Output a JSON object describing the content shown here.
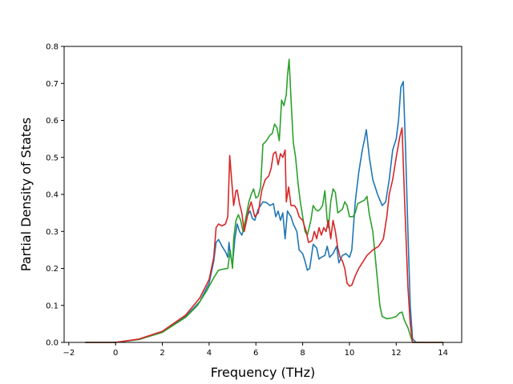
{
  "chart_data": {
    "type": "line",
    "title": "",
    "xlabel": "Frequency (THz)",
    "ylabel": "Partial Density of States",
    "xlim": [
      -2.2,
      14.8
    ],
    "ylim": [
      0,
      0.8
    ],
    "xticks": [
      -2,
      0,
      2,
      4,
      6,
      8,
      10,
      12,
      14
    ],
    "yticks": [
      0.0,
      0.1,
      0.2,
      0.3,
      0.4,
      0.5,
      0.6,
      0.7,
      0.8
    ],
    "xtick_labels": [
      "−2",
      "0",
      "2",
      "4",
      "6",
      "8",
      "10",
      "12",
      "14"
    ],
    "ytick_labels": [
      "0.0",
      "0.1",
      "0.2",
      "0.3",
      "0.4",
      "0.5",
      "0.6",
      "0.7",
      "0.8"
    ],
    "grid": false,
    "legend": "none",
    "series": [
      {
        "color": "#1f77b4",
        "points": [
          [
            -1.3,
            0
          ],
          [
            0,
            0
          ],
          [
            1,
            0.008
          ],
          [
            2,
            0.028
          ],
          [
            3,
            0.07
          ],
          [
            3.6,
            0.11
          ],
          [
            4.0,
            0.16
          ],
          [
            4.2,
            0.22
          ],
          [
            4.3,
            0.27
          ],
          [
            4.4,
            0.278
          ],
          [
            4.55,
            0.26
          ],
          [
            4.7,
            0.245
          ],
          [
            4.8,
            0.23
          ],
          [
            4.85,
            0.27
          ],
          [
            4.9,
            0.24
          ],
          [
            5.0,
            0.21
          ],
          [
            5.1,
            0.28
          ],
          [
            5.2,
            0.32
          ],
          [
            5.3,
            0.3
          ],
          [
            5.4,
            0.29
          ],
          [
            5.5,
            0.31
          ],
          [
            5.6,
            0.34
          ],
          [
            5.75,
            0.355
          ],
          [
            5.85,
            0.335
          ],
          [
            5.95,
            0.33
          ],
          [
            6.1,
            0.36
          ],
          [
            6.3,
            0.38
          ],
          [
            6.45,
            0.378
          ],
          [
            6.6,
            0.37
          ],
          [
            6.75,
            0.375
          ],
          [
            6.85,
            0.34
          ],
          [
            6.95,
            0.355
          ],
          [
            7.05,
            0.33
          ],
          [
            7.15,
            0.35
          ],
          [
            7.25,
            0.28
          ],
          [
            7.35,
            0.355
          ],
          [
            7.5,
            0.34
          ],
          [
            7.6,
            0.32
          ],
          [
            7.75,
            0.3
          ],
          [
            7.85,
            0.25
          ],
          [
            8.0,
            0.24
          ],
          [
            8.1,
            0.22
          ],
          [
            8.2,
            0.195
          ],
          [
            8.3,
            0.2
          ],
          [
            8.45,
            0.265
          ],
          [
            8.6,
            0.255
          ],
          [
            8.7,
            0.225
          ],
          [
            8.8,
            0.23
          ],
          [
            8.95,
            0.235
          ],
          [
            9.05,
            0.26
          ],
          [
            9.15,
            0.23
          ],
          [
            9.3,
            0.24
          ],
          [
            9.45,
            0.26
          ],
          [
            9.55,
            0.215
          ],
          [
            9.7,
            0.235
          ],
          [
            9.85,
            0.24
          ],
          [
            10.0,
            0.23
          ],
          [
            10.1,
            0.25
          ],
          [
            10.25,
            0.38
          ],
          [
            10.4,
            0.46
          ],
          [
            10.55,
            0.52
          ],
          [
            10.65,
            0.55
          ],
          [
            10.72,
            0.575
          ],
          [
            10.85,
            0.5
          ],
          [
            11.0,
            0.44
          ],
          [
            11.2,
            0.4
          ],
          [
            11.4,
            0.37
          ],
          [
            11.55,
            0.38
          ],
          [
            11.7,
            0.44
          ],
          [
            11.85,
            0.52
          ],
          [
            12.0,
            0.55
          ],
          [
            12.1,
            0.6
          ],
          [
            12.2,
            0.69
          ],
          [
            12.3,
            0.705
          ],
          [
            12.4,
            0.52
          ],
          [
            12.5,
            0.3
          ],
          [
            12.6,
            0.1
          ],
          [
            12.7,
            0.01
          ],
          [
            12.85,
            0
          ],
          [
            14.0,
            0
          ]
        ]
      },
      {
        "color": "#2ca02c",
        "points": [
          [
            -1.3,
            0
          ],
          [
            0,
            0
          ],
          [
            1,
            0.008
          ],
          [
            2,
            0.027
          ],
          [
            3,
            0.068
          ],
          [
            3.5,
            0.1
          ],
          [
            3.9,
            0.14
          ],
          [
            4.2,
            0.175
          ],
          [
            4.4,
            0.195
          ],
          [
            4.6,
            0.198
          ],
          [
            4.8,
            0.2
          ],
          [
            4.9,
            0.25
          ],
          [
            5.0,
            0.2
          ],
          [
            5.05,
            0.28
          ],
          [
            5.15,
            0.33
          ],
          [
            5.25,
            0.345
          ],
          [
            5.35,
            0.33
          ],
          [
            5.45,
            0.3
          ],
          [
            5.55,
            0.33
          ],
          [
            5.7,
            0.38
          ],
          [
            5.8,
            0.4
          ],
          [
            5.9,
            0.415
          ],
          [
            6.0,
            0.39
          ],
          [
            6.1,
            0.395
          ],
          [
            6.2,
            0.42
          ],
          [
            6.3,
            0.535
          ],
          [
            6.45,
            0.545
          ],
          [
            6.6,
            0.56
          ],
          [
            6.7,
            0.565
          ],
          [
            6.8,
            0.59
          ],
          [
            6.9,
            0.58
          ],
          [
            7.0,
            0.545
          ],
          [
            7.05,
            0.6
          ],
          [
            7.1,
            0.655
          ],
          [
            7.2,
            0.64
          ],
          [
            7.3,
            0.67
          ],
          [
            7.35,
            0.72
          ],
          [
            7.42,
            0.765
          ],
          [
            7.5,
            0.66
          ],
          [
            7.6,
            0.54
          ],
          [
            7.7,
            0.5
          ],
          [
            7.8,
            0.43
          ],
          [
            7.9,
            0.38
          ],
          [
            8.0,
            0.34
          ],
          [
            8.1,
            0.3
          ],
          [
            8.2,
            0.29
          ],
          [
            8.35,
            0.33
          ],
          [
            8.45,
            0.37
          ],
          [
            8.55,
            0.36
          ],
          [
            8.65,
            0.355
          ],
          [
            8.75,
            0.36
          ],
          [
            8.85,
            0.37
          ],
          [
            8.95,
            0.41
          ],
          [
            9.05,
            0.33
          ],
          [
            9.1,
            0.31
          ],
          [
            9.2,
            0.38
          ],
          [
            9.3,
            0.415
          ],
          [
            9.4,
            0.405
          ],
          [
            9.5,
            0.35
          ],
          [
            9.6,
            0.355
          ],
          [
            9.7,
            0.36
          ],
          [
            9.8,
            0.38
          ],
          [
            9.9,
            0.37
          ],
          [
            10.0,
            0.34
          ],
          [
            10.15,
            0.34
          ],
          [
            10.25,
            0.35
          ],
          [
            10.35,
            0.375
          ],
          [
            10.5,
            0.38
          ],
          [
            10.65,
            0.385
          ],
          [
            10.75,
            0.395
          ],
          [
            10.85,
            0.345
          ],
          [
            11.0,
            0.3
          ],
          [
            11.15,
            0.2
          ],
          [
            11.3,
            0.1
          ],
          [
            11.4,
            0.07
          ],
          [
            11.6,
            0.064
          ],
          [
            11.8,
            0.066
          ],
          [
            12.0,
            0.07
          ],
          [
            12.15,
            0.08
          ],
          [
            12.25,
            0.082
          ],
          [
            12.35,
            0.06
          ],
          [
            12.5,
            0.04
          ],
          [
            12.6,
            0.02
          ],
          [
            12.7,
            0
          ],
          [
            14.0,
            0
          ]
        ]
      },
      {
        "color": "#d62728",
        "points": [
          [
            -1.3,
            0
          ],
          [
            0,
            0
          ],
          [
            1,
            0.009
          ],
          [
            2,
            0.03
          ],
          [
            3,
            0.074
          ],
          [
            3.6,
            0.12
          ],
          [
            4.0,
            0.17
          ],
          [
            4.2,
            0.23
          ],
          [
            4.3,
            0.31
          ],
          [
            4.4,
            0.32
          ],
          [
            4.55,
            0.315
          ],
          [
            4.7,
            0.32
          ],
          [
            4.8,
            0.34
          ],
          [
            4.88,
            0.505
          ],
          [
            4.95,
            0.45
          ],
          [
            5.05,
            0.37
          ],
          [
            5.15,
            0.41
          ],
          [
            5.2,
            0.412
          ],
          [
            5.3,
            0.375
          ],
          [
            5.4,
            0.35
          ],
          [
            5.5,
            0.3
          ],
          [
            5.6,
            0.33
          ],
          [
            5.7,
            0.36
          ],
          [
            5.8,
            0.38
          ],
          [
            5.95,
            0.34
          ],
          [
            6.1,
            0.35
          ],
          [
            6.25,
            0.41
          ],
          [
            6.4,
            0.44
          ],
          [
            6.55,
            0.45
          ],
          [
            6.65,
            0.47
          ],
          [
            6.75,
            0.51
          ],
          [
            6.85,
            0.515
          ],
          [
            6.95,
            0.48
          ],
          [
            7.05,
            0.51
          ],
          [
            7.15,
            0.5
          ],
          [
            7.25,
            0.52
          ],
          [
            7.3,
            0.38
          ],
          [
            7.4,
            0.42
          ],
          [
            7.5,
            0.37
          ],
          [
            7.65,
            0.37
          ],
          [
            7.75,
            0.36
          ],
          [
            7.85,
            0.34
          ],
          [
            8.0,
            0.33
          ],
          [
            8.15,
            0.3
          ],
          [
            8.25,
            0.27
          ],
          [
            8.4,
            0.275
          ],
          [
            8.5,
            0.3
          ],
          [
            8.6,
            0.28
          ],
          [
            8.7,
            0.31
          ],
          [
            8.8,
            0.29
          ],
          [
            8.9,
            0.31
          ],
          [
            9.0,
            0.3
          ],
          [
            9.1,
            0.33
          ],
          [
            9.2,
            0.28
          ],
          [
            9.3,
            0.33
          ],
          [
            9.4,
            0.3
          ],
          [
            9.5,
            0.255
          ],
          [
            9.6,
            0.23
          ],
          [
            9.7,
            0.22
          ],
          [
            9.8,
            0.2
          ],
          [
            9.9,
            0.16
          ],
          [
            10.0,
            0.152
          ],
          [
            10.1,
            0.155
          ],
          [
            10.25,
            0.18
          ],
          [
            10.4,
            0.2
          ],
          [
            10.55,
            0.215
          ],
          [
            10.75,
            0.235
          ],
          [
            11.0,
            0.25
          ],
          [
            11.25,
            0.26
          ],
          [
            11.45,
            0.28
          ],
          [
            11.6,
            0.34
          ],
          [
            11.7,
            0.4
          ],
          [
            11.85,
            0.44
          ],
          [
            12.0,
            0.5
          ],
          [
            12.15,
            0.555
          ],
          [
            12.25,
            0.58
          ],
          [
            12.35,
            0.4
          ],
          [
            12.5,
            0.15
          ],
          [
            12.6,
            0.05
          ],
          [
            12.7,
            0
          ],
          [
            14.0,
            0
          ]
        ]
      }
    ]
  }
}
